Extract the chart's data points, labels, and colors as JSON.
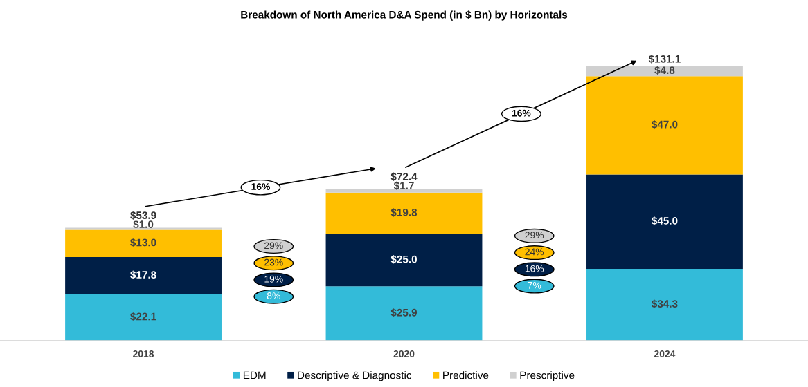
{
  "chart_data": {
    "type": "bar",
    "title": "Breakdown of North America D&A Spend (in $ Bn) by Horizontals",
    "categories": [
      "2018",
      "2020",
      "2024"
    ],
    "stacked": true,
    "legend": "bottom",
    "grid": false,
    "series": [
      {
        "name": "EDM",
        "color": "#33bbd9",
        "values": [
          22.1,
          25.9,
          34.3
        ],
        "value_labels": [
          "$22.1",
          "$25.9",
          "$34.3"
        ]
      },
      {
        "name": "Descriptive & Diagnostic",
        "color": "#001f47",
        "values": [
          17.8,
          25.0,
          45.0
        ],
        "value_labels": [
          "$17.8",
          "$25.0",
          "$45.0"
        ]
      },
      {
        "name": "Predictive",
        "color": "#ffbf00",
        "values": [
          13.0,
          19.8,
          47.0
        ],
        "value_labels": [
          "$13.0",
          "$19.8",
          "$47.0"
        ]
      },
      {
        "name": "Prescriptive",
        "color": "#d0d0d0",
        "values": [
          1.0,
          1.7,
          4.8
        ],
        "value_labels": [
          "$1.0",
          "$1.7",
          "$4.8"
        ]
      }
    ],
    "totals": [
      "$53.9",
      "$72.4",
      "$131.1"
    ],
    "annotations": [
      "16%",
      "16%",
      "29%",
      "23%",
      "19%",
      "8%",
      "29%",
      "24%",
      "16%",
      "7%"
    ]
  }
}
